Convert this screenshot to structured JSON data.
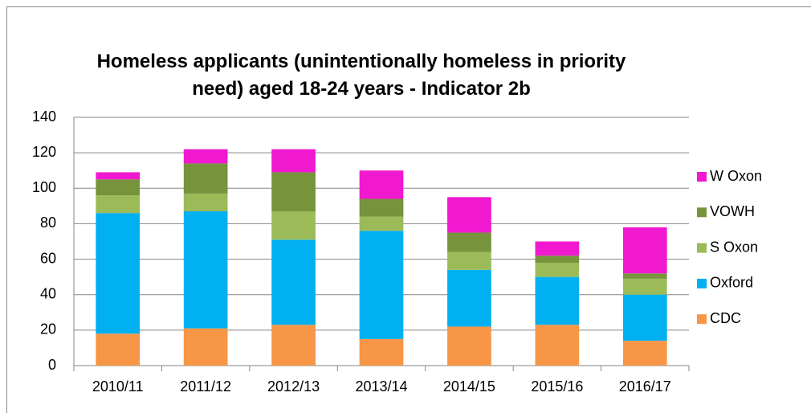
{
  "chart_data": {
    "type": "stacked_bar",
    "title": "Homeless applicants (unintentionally homeless in priority need) aged 18-24 years - Indicator 2b",
    "categories": [
      "2010/11",
      "2011/12",
      "2012/13",
      "2013/14",
      "2014/15",
      "2015/16",
      "2016/17"
    ],
    "series": [
      {
        "name": "CDC",
        "color": "#f79646",
        "values": [
          18,
          21,
          23,
          15,
          22,
          23,
          14
        ]
      },
      {
        "name": "Oxford",
        "color": "#00b0f0",
        "values": [
          68,
          66,
          48,
          61,
          32,
          27,
          26
        ]
      },
      {
        "name": "S Oxon",
        "color": "#9bbb59",
        "values": [
          10,
          10,
          16,
          8,
          10,
          8,
          9
        ]
      },
      {
        "name": "VOWH",
        "color": "#77933c",
        "values": [
          9,
          17,
          22,
          10,
          11,
          4,
          3
        ]
      },
      {
        "name": "W Oxon",
        "color": "#f019d0",
        "values": [
          4,
          8,
          13,
          16,
          20,
          8,
          26
        ]
      }
    ],
    "ylim": [
      0,
      140
    ],
    "yticks": [
      0,
      20,
      40,
      60,
      80,
      100,
      120,
      140
    ],
    "grid": true,
    "legend": "right"
  }
}
